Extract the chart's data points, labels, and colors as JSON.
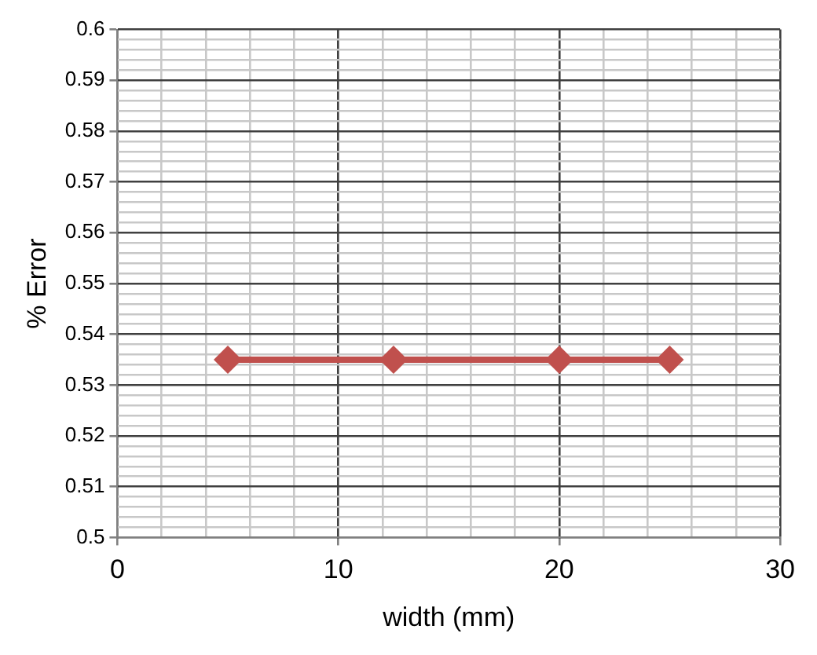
{
  "chart_data": {
    "type": "line",
    "xlabel": "width (mm)",
    "ylabel": "% Error",
    "x": [
      5,
      12.5,
      20,
      25
    ],
    "series": [
      {
        "color": "#c0504d",
        "values": [
          0.535,
          0.535,
          0.535,
          0.535
        ]
      }
    ],
    "xlim": [
      0,
      30
    ],
    "xticks": [
      0,
      {
        "value": 2,
        "label": null
      },
      {
        "value": 4,
        "label": null
      },
      {
        "value": 6,
        "label": null
      },
      {
        "value": 8,
        "label": null
      },
      10,
      {
        "value": 12,
        "label": null
      },
      {
        "value": 14,
        "label": null
      },
      {
        "value": 16,
        "label": null
      },
      {
        "value": 18,
        "label": null
      },
      20,
      {
        "value": 22,
        "label": null
      },
      {
        "value": 24,
        "label": null
      },
      {
        "value": 26,
        "label": null
      },
      {
        "value": 28,
        "label": null
      },
      30
    ],
    "ylim": [
      0.5,
      0.6
    ],
    "yticks": [
      0.5,
      {
        "value": 0.502,
        "label": null
      },
      {
        "value": 0.504,
        "label": null
      },
      {
        "value": 0.506,
        "label": null
      },
      {
        "value": 0.508,
        "label": null
      },
      0.51,
      {
        "value": 0.512,
        "label": null
      },
      {
        "value": 0.514,
        "label": null
      },
      {
        "value": 0.516,
        "label": null
      },
      {
        "value": 0.518,
        "label": null
      },
      0.52,
      {
        "value": 0.522,
        "label": null
      },
      {
        "value": 0.524,
        "label": null
      },
      {
        "value": 0.526,
        "label": null
      },
      {
        "value": 0.528,
        "label": null
      },
      0.53,
      {
        "value": 0.532,
        "label": null
      },
      {
        "value": 0.534,
        "label": null
      },
      {
        "value": 0.536,
        "label": null
      },
      {
        "value": 0.538,
        "label": null
      },
      0.54,
      {
        "value": 0.542,
        "label": null
      },
      {
        "value": 0.544,
        "label": null
      },
      {
        "value": 0.546,
        "label": null
      },
      {
        "value": 0.548,
        "label": null
      },
      0.55,
      {
        "value": 0.552,
        "label": null
      },
      {
        "value": 0.554,
        "label": null
      },
      {
        "value": 0.556,
        "label": null
      },
      {
        "value": 0.558,
        "label": null
      },
      0.56,
      {
        "value": 0.562,
        "label": null
      },
      {
        "value": 0.564,
        "label": null
      },
      {
        "value": 0.566,
        "label": null
      },
      {
        "value": 0.568,
        "label": null
      },
      0.57,
      {
        "value": 0.572,
        "label": null
      },
      {
        "value": 0.574,
        "label": null
      },
      {
        "value": 0.576,
        "label": null
      },
      {
        "value": 0.578,
        "label": null
      },
      0.58,
      {
        "value": 0.582,
        "label": null
      },
      {
        "value": 0.584,
        "label": null
      },
      {
        "value": 0.586,
        "label": null
      },
      {
        "value": 0.588,
        "label": null
      },
      0.59,
      {
        "value": 0.592,
        "label": null
      },
      {
        "value": 0.594,
        "label": null
      },
      {
        "value": 0.596,
        "label": null
      },
      {
        "value": 0.598,
        "label": null
      },
      0.6
    ],
    "grid": true,
    "marker": "diamond",
    "line_style": "solid",
    "legend": false
  }
}
